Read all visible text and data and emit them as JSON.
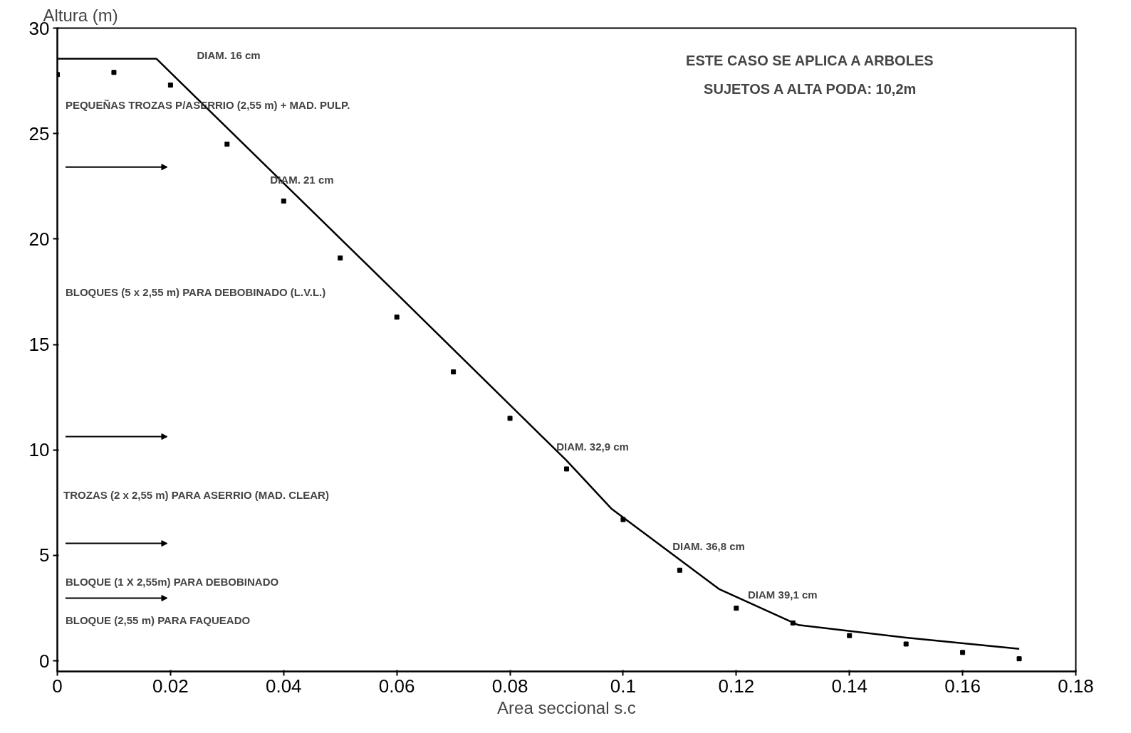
{
  "chart_data": {
    "type": "scatter",
    "xlabel": "Area seccional s.c",
    "ylabel": "Altura (m)",
    "xlim": [
      0,
      0.18
    ],
    "ylim": [
      -0.5,
      30
    ],
    "xticks": [
      0,
      0.02,
      0.04,
      0.06,
      0.08,
      0.1,
      0.12,
      0.14,
      0.16,
      0.18
    ],
    "yticks": [
      0,
      5,
      10,
      15,
      20,
      25,
      30
    ],
    "grid": false,
    "marker": "square",
    "series": [
      {
        "color": "#000000",
        "x": [
          0,
          0.01,
          0.02,
          0.03,
          0.04,
          0.05,
          0.06,
          0.07,
          0.08,
          0.09,
          0.1,
          0.11,
          0.12,
          0.13,
          0.14,
          0.15,
          0.16,
          0.17
        ],
        "values": [
          27.8,
          27.9,
          27.3,
          24.5,
          21.8,
          19.1,
          16.3,
          13.7,
          11.5,
          9.1,
          6.7,
          4.3,
          2.5,
          1.8,
          1.2,
          0.8,
          0.4,
          0.1
        ]
      },
      {
        "type": "line",
        "color": "#000000",
        "line_style": "solid",
        "marker": "none",
        "x": [
          0,
          0.0175,
          0.06,
          0.09,
          0.098,
          0.117,
          0.131,
          0.15,
          0.17
        ],
        "values": [
          28.55,
          28.55,
          17.4,
          9.5,
          7.2,
          3.4,
          1.7,
          1.1,
          0.57
        ]
      }
    ],
    "annotations": [
      "ESTE CASO SE APLICA A ARBOLES",
      "SUJETOS A ALTA PODA: 10,2m",
      "DIAM. 16 cm",
      "PEQUEÑAS TROZAS P/ASERRIO (2,55 m) + MAD. PULP.",
      "DIAM. 21 cm",
      "BLOQUES (5 x 2,55 m) PARA DEBOBINADO (L.V.L.)",
      "DIAM. 32,9 cm",
      "TROZAS (2 x 2,55 m) PARA ASERRIO (MAD. CLEAR)",
      "DIAM. 36,8 cm",
      "BLOQUE (1 X 2,55m) PARA DEBOBINADO",
      "DIAM 39,1 cm",
      "BLOQUE (2,55 m) PARA FAQUEADO"
    ]
  }
}
